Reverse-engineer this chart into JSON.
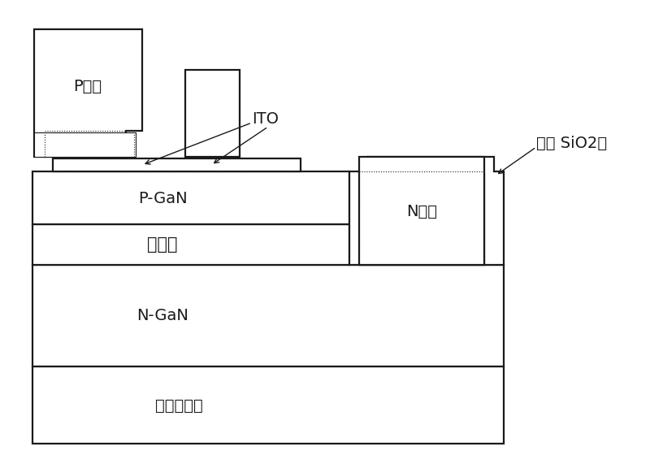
{
  "bg_color": "#ffffff",
  "line_color": "#1a1a1a",
  "lw": 1.6,
  "labels": {
    "p_electrode": "P电极",
    "ito": "ITO",
    "p_gan": "P-GaN",
    "qw": "量子阱",
    "n_gan": "N-GaN",
    "sapphire": "蓝宝石衷底",
    "n_electrode": "N电极",
    "passivation": "钒化 SiO2层"
  },
  "font_size_large": 14,
  "font_size_small": 13
}
